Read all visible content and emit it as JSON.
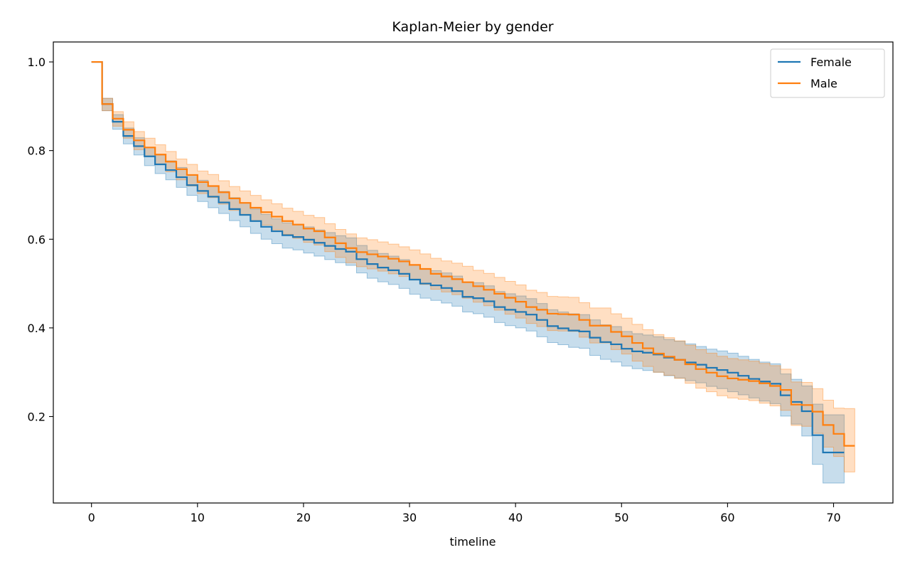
{
  "chart_data": {
    "type": "line",
    "step": "post",
    "title": "Kaplan-Meier by gender",
    "xlabel": "timeline",
    "ylabel": "",
    "xlim": [
      -3.6,
      75.6
    ],
    "ylim": [
      0.005,
      1.045
    ],
    "xticks": [
      0,
      10,
      20,
      30,
      40,
      50,
      60,
      70
    ],
    "xtick_labels": [
      "0",
      "10",
      "20",
      "30",
      "40",
      "50",
      "60",
      "70"
    ],
    "yticks": [
      0.2,
      0.4,
      0.6,
      0.8,
      1.0
    ],
    "ytick_labels": [
      "0.2",
      "0.4",
      "0.6",
      "0.8",
      "1.0"
    ],
    "grid": false,
    "legend": {
      "position": "top-right"
    },
    "confidence_band_opacity": 0.25,
    "series": [
      {
        "name": "Female",
        "color": "#1f77b4",
        "x": [
          0,
          1,
          2,
          3,
          4,
          5,
          6,
          7,
          8,
          9,
          10,
          11,
          12,
          13,
          14,
          15,
          16,
          17,
          18,
          19,
          20,
          21,
          22,
          23,
          24,
          25,
          26,
          27,
          28,
          29,
          30,
          31,
          32,
          33,
          34,
          35,
          36,
          37,
          38,
          39,
          40,
          41,
          42,
          43,
          44,
          45,
          46,
          47,
          48,
          49,
          50,
          51,
          52,
          53,
          54,
          55,
          56,
          57,
          58,
          59,
          60,
          61,
          62,
          63,
          64,
          65,
          66,
          67,
          68,
          69,
          70,
          71
        ],
        "y": [
          1.0,
          0.905,
          0.865,
          0.833,
          0.81,
          0.787,
          0.769,
          0.756,
          0.74,
          0.722,
          0.709,
          0.696,
          0.683,
          0.668,
          0.655,
          0.641,
          0.628,
          0.618,
          0.609,
          0.605,
          0.599,
          0.592,
          0.585,
          0.578,
          0.572,
          0.555,
          0.544,
          0.536,
          0.53,
          0.522,
          0.509,
          0.5,
          0.496,
          0.49,
          0.483,
          0.47,
          0.467,
          0.46,
          0.447,
          0.441,
          0.436,
          0.43,
          0.418,
          0.404,
          0.399,
          0.394,
          0.392,
          0.378,
          0.368,
          0.363,
          0.353,
          0.347,
          0.344,
          0.34,
          0.333,
          0.328,
          0.322,
          0.317,
          0.31,
          0.305,
          0.299,
          0.292,
          0.285,
          0.279,
          0.274,
          0.248,
          0.233,
          0.212,
          0.158,
          0.119,
          0.119,
          0.119
        ],
        "ci_lower": [
          1.0,
          0.89,
          0.848,
          0.815,
          0.79,
          0.766,
          0.748,
          0.734,
          0.717,
          0.699,
          0.685,
          0.671,
          0.658,
          0.642,
          0.628,
          0.613,
          0.6,
          0.59,
          0.58,
          0.576,
          0.569,
          0.562,
          0.554,
          0.547,
          0.541,
          0.524,
          0.512,
          0.504,
          0.498,
          0.489,
          0.476,
          0.467,
          0.462,
          0.456,
          0.449,
          0.436,
          0.432,
          0.424,
          0.412,
          0.405,
          0.4,
          0.393,
          0.38,
          0.367,
          0.362,
          0.356,
          0.354,
          0.338,
          0.329,
          0.323,
          0.314,
          0.308,
          0.304,
          0.3,
          0.292,
          0.287,
          0.281,
          0.276,
          0.268,
          0.263,
          0.256,
          0.249,
          0.242,
          0.235,
          0.229,
          0.201,
          0.183,
          0.156,
          0.092,
          0.05,
          0.05,
          0.05
        ],
        "ci_upper": [
          1.0,
          0.918,
          0.881,
          0.851,
          0.829,
          0.807,
          0.79,
          0.777,
          0.762,
          0.745,
          0.733,
          0.72,
          0.708,
          0.694,
          0.682,
          0.668,
          0.656,
          0.646,
          0.637,
          0.634,
          0.628,
          0.621,
          0.615,
          0.608,
          0.603,
          0.586,
          0.575,
          0.568,
          0.562,
          0.554,
          0.542,
          0.533,
          0.529,
          0.524,
          0.517,
          0.504,
          0.502,
          0.495,
          0.482,
          0.477,
          0.472,
          0.466,
          0.455,
          0.441,
          0.436,
          0.432,
          0.43,
          0.418,
          0.407,
          0.403,
          0.392,
          0.387,
          0.384,
          0.38,
          0.374,
          0.37,
          0.364,
          0.358,
          0.352,
          0.348,
          0.343,
          0.336,
          0.329,
          0.323,
          0.319,
          0.296,
          0.284,
          0.269,
          0.228,
          0.204,
          0.204,
          0.204
        ]
      },
      {
        "name": "Male",
        "color": "#ff7f0e",
        "x": [
          0,
          1,
          2,
          3,
          4,
          5,
          6,
          7,
          8,
          9,
          10,
          11,
          12,
          13,
          14,
          15,
          16,
          17,
          18,
          19,
          20,
          21,
          22,
          23,
          24,
          25,
          26,
          27,
          28,
          29,
          30,
          31,
          32,
          33,
          34,
          35,
          36,
          37,
          38,
          39,
          40,
          41,
          42,
          43,
          44,
          45,
          46,
          47,
          48,
          49,
          50,
          51,
          52,
          53,
          54,
          55,
          56,
          57,
          58,
          59,
          60,
          61,
          62,
          63,
          64,
          65,
          66,
          67,
          68,
          69,
          70,
          71,
          72
        ],
        "y": [
          1.0,
          0.905,
          0.872,
          0.847,
          0.823,
          0.807,
          0.791,
          0.775,
          0.758,
          0.745,
          0.729,
          0.72,
          0.706,
          0.692,
          0.682,
          0.671,
          0.661,
          0.651,
          0.641,
          0.633,
          0.624,
          0.618,
          0.604,
          0.591,
          0.58,
          0.571,
          0.566,
          0.561,
          0.556,
          0.55,
          0.542,
          0.533,
          0.522,
          0.516,
          0.51,
          0.503,
          0.494,
          0.486,
          0.477,
          0.468,
          0.459,
          0.447,
          0.441,
          0.432,
          0.431,
          0.43,
          0.418,
          0.405,
          0.405,
          0.391,
          0.381,
          0.366,
          0.354,
          0.342,
          0.335,
          0.328,
          0.318,
          0.307,
          0.299,
          0.291,
          0.286,
          0.283,
          0.28,
          0.275,
          0.269,
          0.26,
          0.227,
          0.226,
          0.211,
          0.181,
          0.161,
          0.134,
          0.134
        ],
        "ci_lower": [
          1.0,
          0.89,
          0.855,
          0.828,
          0.802,
          0.786,
          0.768,
          0.752,
          0.734,
          0.72,
          0.703,
          0.694,
          0.679,
          0.665,
          0.654,
          0.642,
          0.632,
          0.621,
          0.611,
          0.602,
          0.593,
          0.587,
          0.572,
          0.559,
          0.547,
          0.538,
          0.533,
          0.528,
          0.522,
          0.516,
          0.508,
          0.498,
          0.487,
          0.481,
          0.475,
          0.467,
          0.458,
          0.45,
          0.44,
          0.431,
          0.422,
          0.41,
          0.403,
          0.394,
          0.393,
          0.392,
          0.379,
          0.366,
          0.366,
          0.351,
          0.341,
          0.325,
          0.313,
          0.3,
          0.293,
          0.286,
          0.275,
          0.264,
          0.256,
          0.247,
          0.242,
          0.239,
          0.236,
          0.23,
          0.224,
          0.214,
          0.18,
          0.178,
          0.162,
          0.131,
          0.11,
          0.075,
          0.075
        ],
        "ci_upper": [
          1.0,
          0.918,
          0.888,
          0.865,
          0.843,
          0.828,
          0.813,
          0.798,
          0.781,
          0.769,
          0.754,
          0.746,
          0.732,
          0.719,
          0.709,
          0.699,
          0.689,
          0.68,
          0.67,
          0.663,
          0.654,
          0.649,
          0.635,
          0.622,
          0.612,
          0.603,
          0.599,
          0.594,
          0.589,
          0.583,
          0.576,
          0.567,
          0.557,
          0.551,
          0.546,
          0.539,
          0.53,
          0.523,
          0.514,
          0.505,
          0.497,
          0.485,
          0.48,
          0.471,
          0.47,
          0.469,
          0.457,
          0.445,
          0.445,
          0.432,
          0.422,
          0.408,
          0.396,
          0.385,
          0.378,
          0.371,
          0.361,
          0.351,
          0.343,
          0.336,
          0.331,
          0.328,
          0.325,
          0.32,
          0.315,
          0.307,
          0.278,
          0.277,
          0.263,
          0.237,
          0.219,
          0.218,
          0.218
        ]
      }
    ]
  }
}
